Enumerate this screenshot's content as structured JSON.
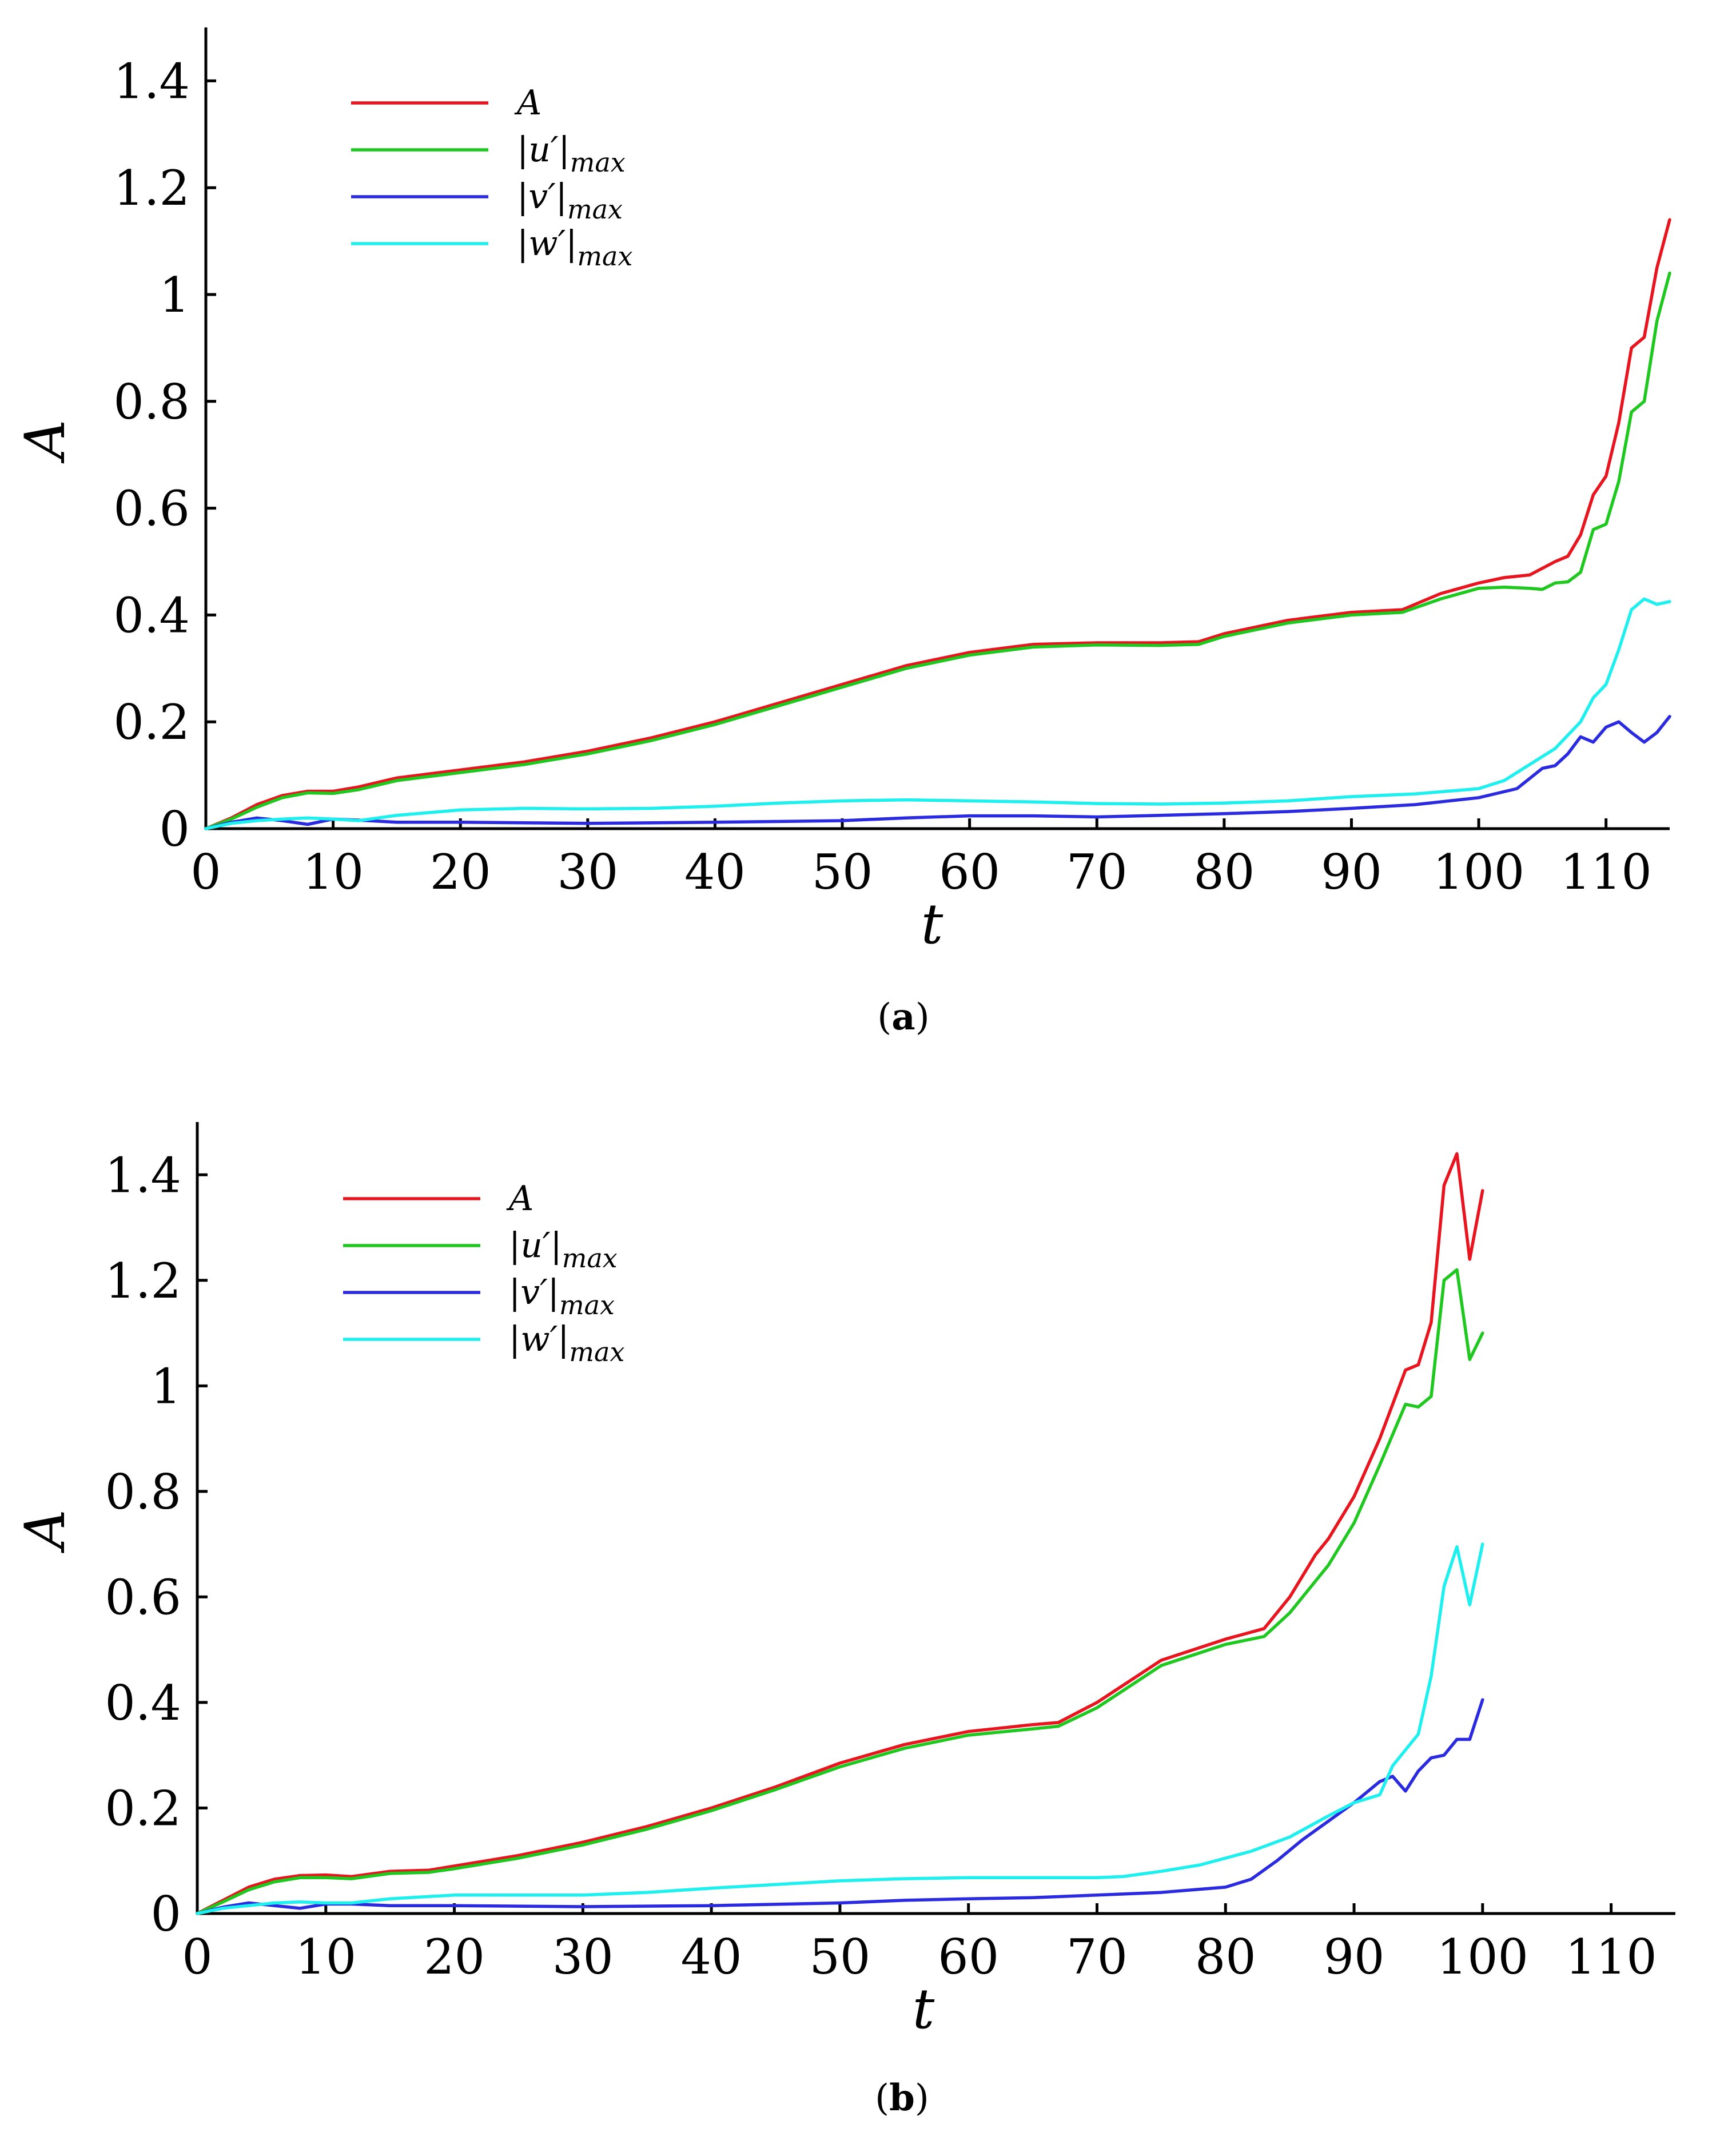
{
  "chart_data": [
    {
      "type": "line",
      "caption_letter": "a",
      "xlabel": "t",
      "ylabel": "A",
      "xlim": [
        0,
        115
      ],
      "ylim": [
        0,
        1.5
      ],
      "xticks": [
        0,
        10,
        20,
        30,
        40,
        50,
        60,
        70,
        80,
        90,
        100,
        110
      ],
      "yticks": [
        0,
        0.2,
        0.4,
        0.6,
        0.8,
        1,
        1.2,
        1.4
      ],
      "ytick_labels": [
        "0",
        "0.2",
        "0.4",
        "0.6",
        "0.8",
        "1",
        "1.2",
        "1.4"
      ],
      "legend_position": "top-left",
      "series": [
        {
          "name": "A",
          "label_main": "A",
          "label_sub": "",
          "color": "#e8141e",
          "x": [
            0,
            2,
            4,
            6,
            8,
            10,
            12,
            15,
            20,
            25,
            30,
            35,
            40,
            45,
            50,
            55,
            60,
            65,
            70,
            75,
            78,
            80,
            85,
            90,
            94,
            97,
            100,
            102,
            104,
            106,
            107,
            108,
            109,
            110,
            111,
            112,
            113,
            114,
            115
          ],
          "y": [
            0,
            0.02,
            0.045,
            0.062,
            0.07,
            0.07,
            0.078,
            0.095,
            0.11,
            0.125,
            0.145,
            0.17,
            0.2,
            0.235,
            0.27,
            0.305,
            0.33,
            0.345,
            0.348,
            0.348,
            0.35,
            0.365,
            0.39,
            0.405,
            0.41,
            0.44,
            0.46,
            0.47,
            0.475,
            0.5,
            0.51,
            0.55,
            0.625,
            0.66,
            0.76,
            0.9,
            0.92,
            1.05,
            1.14
          ]
        },
        {
          "name": "|u'|max",
          "label_main": "|u′|",
          "label_sub": "max",
          "color": "#1ec81e",
          "x": [
            0,
            2,
            4,
            6,
            8,
            10,
            12,
            15,
            20,
            25,
            30,
            35,
            40,
            45,
            50,
            55,
            60,
            65,
            70,
            75,
            78,
            80,
            85,
            90,
            94,
            97,
            100,
            102,
            104,
            105,
            106,
            107,
            108,
            109,
            110,
            111,
            112,
            113,
            114,
            115
          ],
          "y": [
            0,
            0.018,
            0.04,
            0.058,
            0.067,
            0.066,
            0.073,
            0.09,
            0.105,
            0.12,
            0.14,
            0.165,
            0.195,
            0.23,
            0.265,
            0.3,
            0.325,
            0.34,
            0.344,
            0.343,
            0.345,
            0.36,
            0.385,
            0.4,
            0.405,
            0.43,
            0.45,
            0.452,
            0.45,
            0.448,
            0.46,
            0.462,
            0.48,
            0.56,
            0.57,
            0.65,
            0.78,
            0.8,
            0.95,
            1.04
          ]
        },
        {
          "name": "|v'|max",
          "label_main": "|v′|",
          "label_sub": "max",
          "color": "#2a2ae0",
          "x": [
            0,
            2,
            4,
            6,
            8,
            10,
            12,
            15,
            20,
            30,
            40,
            50,
            55,
            60,
            65,
            70,
            75,
            80,
            85,
            90,
            95,
            100,
            103,
            105,
            106,
            107,
            108,
            109,
            110,
            111,
            112,
            113,
            114,
            115
          ],
          "y": [
            0,
            0.012,
            0.02,
            0.015,
            0.008,
            0.018,
            0.016,
            0.012,
            0.012,
            0.01,
            0.012,
            0.015,
            0.02,
            0.024,
            0.024,
            0.022,
            0.025,
            0.028,
            0.032,
            0.038,
            0.045,
            0.058,
            0.075,
            0.113,
            0.118,
            0.14,
            0.172,
            0.162,
            0.19,
            0.2,
            0.18,
            0.162,
            0.18,
            0.21
          ]
        },
        {
          "name": "|w'|max",
          "label_main": "|w′|",
          "label_sub": "max",
          "color": "#1ef0f0",
          "x": [
            0,
            2,
            4,
            6,
            8,
            10,
            12,
            15,
            20,
            25,
            30,
            35,
            40,
            45,
            50,
            55,
            60,
            65,
            70,
            75,
            80,
            85,
            90,
            95,
            100,
            102,
            104,
            106,
            108,
            109,
            110,
            111,
            112,
            113,
            114,
            115
          ],
          "y": [
            0,
            0.01,
            0.015,
            0.018,
            0.02,
            0.018,
            0.015,
            0.025,
            0.035,
            0.038,
            0.037,
            0.038,
            0.042,
            0.048,
            0.052,
            0.054,
            0.052,
            0.05,
            0.047,
            0.046,
            0.048,
            0.052,
            0.06,
            0.065,
            0.075,
            0.09,
            0.12,
            0.15,
            0.2,
            0.245,
            0.27,
            0.335,
            0.41,
            0.43,
            0.42,
            0.425
          ]
        }
      ]
    },
    {
      "type": "line",
      "caption_letter": "b",
      "xlabel": "t",
      "ylabel": "A",
      "xlim": [
        0,
        115
      ],
      "ylim": [
        0,
        1.5
      ],
      "xticks": [
        0,
        10,
        20,
        30,
        40,
        50,
        60,
        70,
        80,
        90,
        100,
        110
      ],
      "yticks": [
        0,
        0.2,
        0.4,
        0.6,
        0.8,
        1,
        1.2,
        1.4
      ],
      "ytick_labels": [
        "0",
        "0.2",
        "0.4",
        "0.6",
        "0.8",
        "1",
        "1.2",
        "1.4"
      ],
      "legend_position": "top-left",
      "series": [
        {
          "name": "A",
          "label_main": "A",
          "label_sub": "",
          "color": "#e8141e",
          "x": [
            0,
            2,
            4,
            6,
            8,
            10,
            12,
            15,
            18,
            20,
            25,
            30,
            35,
            40,
            45,
            50,
            55,
            60,
            65,
            67,
            70,
            75,
            80,
            83,
            85,
            87,
            88,
            90,
            92,
            94,
            95,
            96,
            97,
            98,
            99,
            100
          ],
          "y": [
            0,
            0.025,
            0.05,
            0.065,
            0.072,
            0.073,
            0.07,
            0.08,
            0.082,
            0.09,
            0.11,
            0.135,
            0.165,
            0.2,
            0.24,
            0.285,
            0.32,
            0.345,
            0.358,
            0.362,
            0.4,
            0.48,
            0.52,
            0.54,
            0.6,
            0.68,
            0.71,
            0.79,
            0.9,
            1.03,
            1.04,
            1.12,
            1.38,
            1.44,
            1.24,
            1.37
          ]
        },
        {
          "name": "|u'|max",
          "label_main": "|u′|",
          "label_sub": "max",
          "color": "#1ec81e",
          "x": [
            0,
            2,
            4,
            6,
            8,
            10,
            12,
            15,
            18,
            20,
            25,
            30,
            35,
            40,
            45,
            50,
            55,
            60,
            65,
            67,
            70,
            75,
            80,
            83,
            85,
            87,
            88,
            90,
            92,
            94,
            95,
            96,
            97,
            98,
            99,
            100
          ],
          "y": [
            0,
            0.022,
            0.045,
            0.06,
            0.068,
            0.068,
            0.066,
            0.076,
            0.078,
            0.085,
            0.105,
            0.13,
            0.16,
            0.195,
            0.235,
            0.278,
            0.313,
            0.338,
            0.35,
            0.355,
            0.39,
            0.47,
            0.51,
            0.525,
            0.57,
            0.63,
            0.66,
            0.74,
            0.85,
            0.965,
            0.96,
            0.98,
            1.2,
            1.22,
            1.05,
            1.1
          ]
        },
        {
          "name": "|v'|max",
          "label_main": "|v′|",
          "label_sub": "max",
          "color": "#2a2ae0",
          "x": [
            0,
            2,
            4,
            6,
            8,
            10,
            12,
            15,
            20,
            30,
            40,
            50,
            55,
            60,
            65,
            70,
            75,
            80,
            82,
            84,
            86,
            88,
            90,
            92,
            93,
            94,
            95,
            96,
            97,
            98,
            99,
            100
          ],
          "y": [
            0,
            0.012,
            0.02,
            0.015,
            0.01,
            0.018,
            0.018,
            0.015,
            0.015,
            0.013,
            0.015,
            0.02,
            0.025,
            0.028,
            0.03,
            0.035,
            0.04,
            0.05,
            0.065,
            0.1,
            0.14,
            0.175,
            0.21,
            0.25,
            0.26,
            0.232,
            0.27,
            0.295,
            0.3,
            0.33,
            0.33,
            0.405
          ]
        },
        {
          "name": "|w'|max",
          "label_main": "|w′|",
          "label_sub": "max",
          "color": "#1ef0f0",
          "x": [
            0,
            2,
            4,
            6,
            8,
            10,
            12,
            15,
            20,
            25,
            30,
            35,
            40,
            45,
            50,
            55,
            60,
            65,
            70,
            72,
            75,
            78,
            80,
            82,
            85,
            88,
            90,
            92,
            93,
            95,
            96,
            97,
            98,
            99,
            100
          ],
          "y": [
            0,
            0.01,
            0.015,
            0.02,
            0.022,
            0.02,
            0.02,
            0.028,
            0.035,
            0.035,
            0.035,
            0.04,
            0.048,
            0.055,
            0.062,
            0.066,
            0.068,
            0.068,
            0.068,
            0.07,
            0.08,
            0.092,
            0.105,
            0.118,
            0.145,
            0.185,
            0.21,
            0.225,
            0.28,
            0.34,
            0.45,
            0.62,
            0.695,
            0.585,
            0.7
          ]
        }
      ]
    }
  ]
}
